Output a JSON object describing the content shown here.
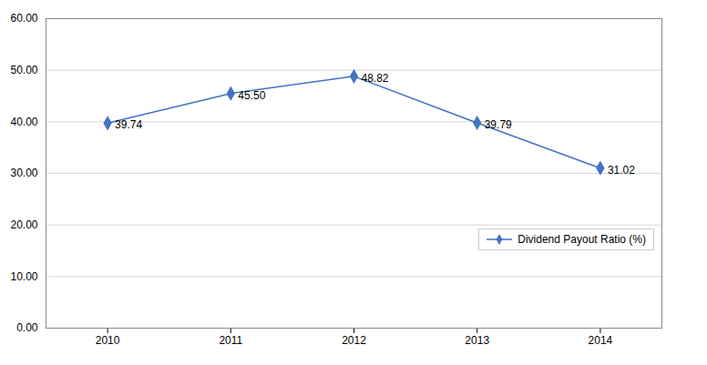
{
  "chart_data": {
    "type": "line",
    "x": [
      2010,
      2011,
      2012,
      2013,
      2014
    ],
    "series": [
      {
        "name": "Dividend Payout Ratio (%)",
        "color": "#4472C4",
        "marker": "diamond",
        "values": [
          39.74,
          45.5,
          48.82,
          39.79,
          31.02
        ],
        "value_labels": [
          "39.74",
          "45.50",
          "48.82",
          "39.79",
          "31.02"
        ]
      }
    ],
    "xlim": [
      2009.5,
      2014.5
    ],
    "xticks": [
      2010,
      2011,
      2012,
      2013,
      2014
    ],
    "ylim": [
      0,
      60
    ],
    "yticks": [
      {
        "value": 0,
        "label": "0.00"
      },
      {
        "value": 10,
        "label": "10.00"
      },
      {
        "value": 20,
        "label": "20.00"
      },
      {
        "value": 30,
        "label": "30.00"
      },
      {
        "value": 40,
        "label": "40.00"
      },
      {
        "value": 50,
        "label": "50.00"
      },
      {
        "value": 60,
        "label": "60.00"
      }
    ],
    "grid": true,
    "data_labels": true,
    "legend": "lower right"
  }
}
